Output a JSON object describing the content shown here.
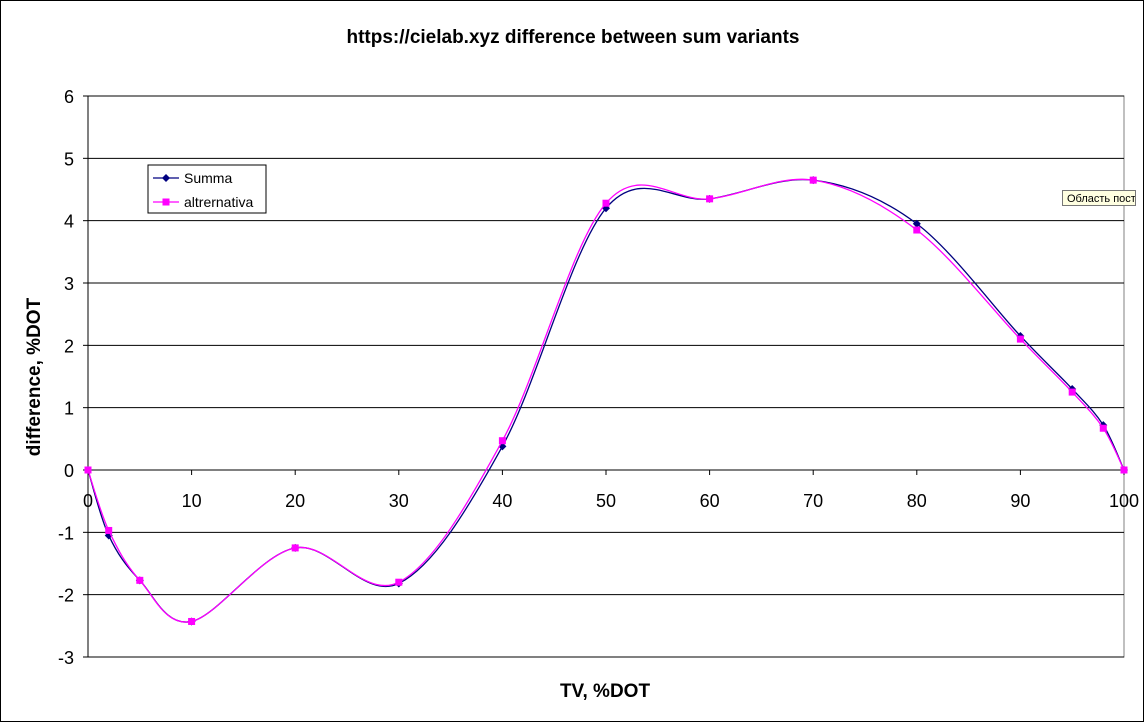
{
  "chart_data": {
    "type": "line",
    "title": "https://cielab.xyz difference between sum variants",
    "xlabel": "TV, %DOT",
    "ylabel": "difference, %DOT",
    "xlim": [
      0,
      100
    ],
    "ylim": [
      -3,
      6
    ],
    "x_ticks": [
      "0",
      "10",
      "20",
      "30",
      "40",
      "50",
      "60",
      "70",
      "80",
      "90",
      "100"
    ],
    "y_ticks": [
      "6",
      "5",
      "4",
      "3",
      "2",
      "1",
      "0",
      "-1",
      "-2",
      "-3"
    ],
    "grid": "horizontal",
    "legend_position": "top-left",
    "series": [
      {
        "name": "Summa",
        "color": "#000080",
        "marker": "diamond",
        "x": [
          0,
          2,
          5,
          10,
          20,
          30,
          40,
          50,
          60,
          70,
          80,
          90,
          95,
          98,
          100
        ],
        "y": [
          0,
          -1.05,
          -1.77,
          -2.43,
          -1.25,
          -1.82,
          0.38,
          4.2,
          4.35,
          4.65,
          3.95,
          2.15,
          1.3,
          0.72,
          0
        ]
      },
      {
        "name": "altrernativa",
        "color": "#ff00ff",
        "marker": "square",
        "x": [
          0,
          2,
          5,
          10,
          20,
          30,
          40,
          50,
          60,
          70,
          80,
          90,
          95,
          98,
          100
        ],
        "y": [
          0,
          -0.97,
          -1.77,
          -2.43,
          -1.25,
          -1.8,
          0.47,
          4.28,
          4.35,
          4.65,
          3.85,
          2.1,
          1.25,
          0.67,
          0
        ]
      }
    ]
  },
  "tooltip": "Область построения"
}
